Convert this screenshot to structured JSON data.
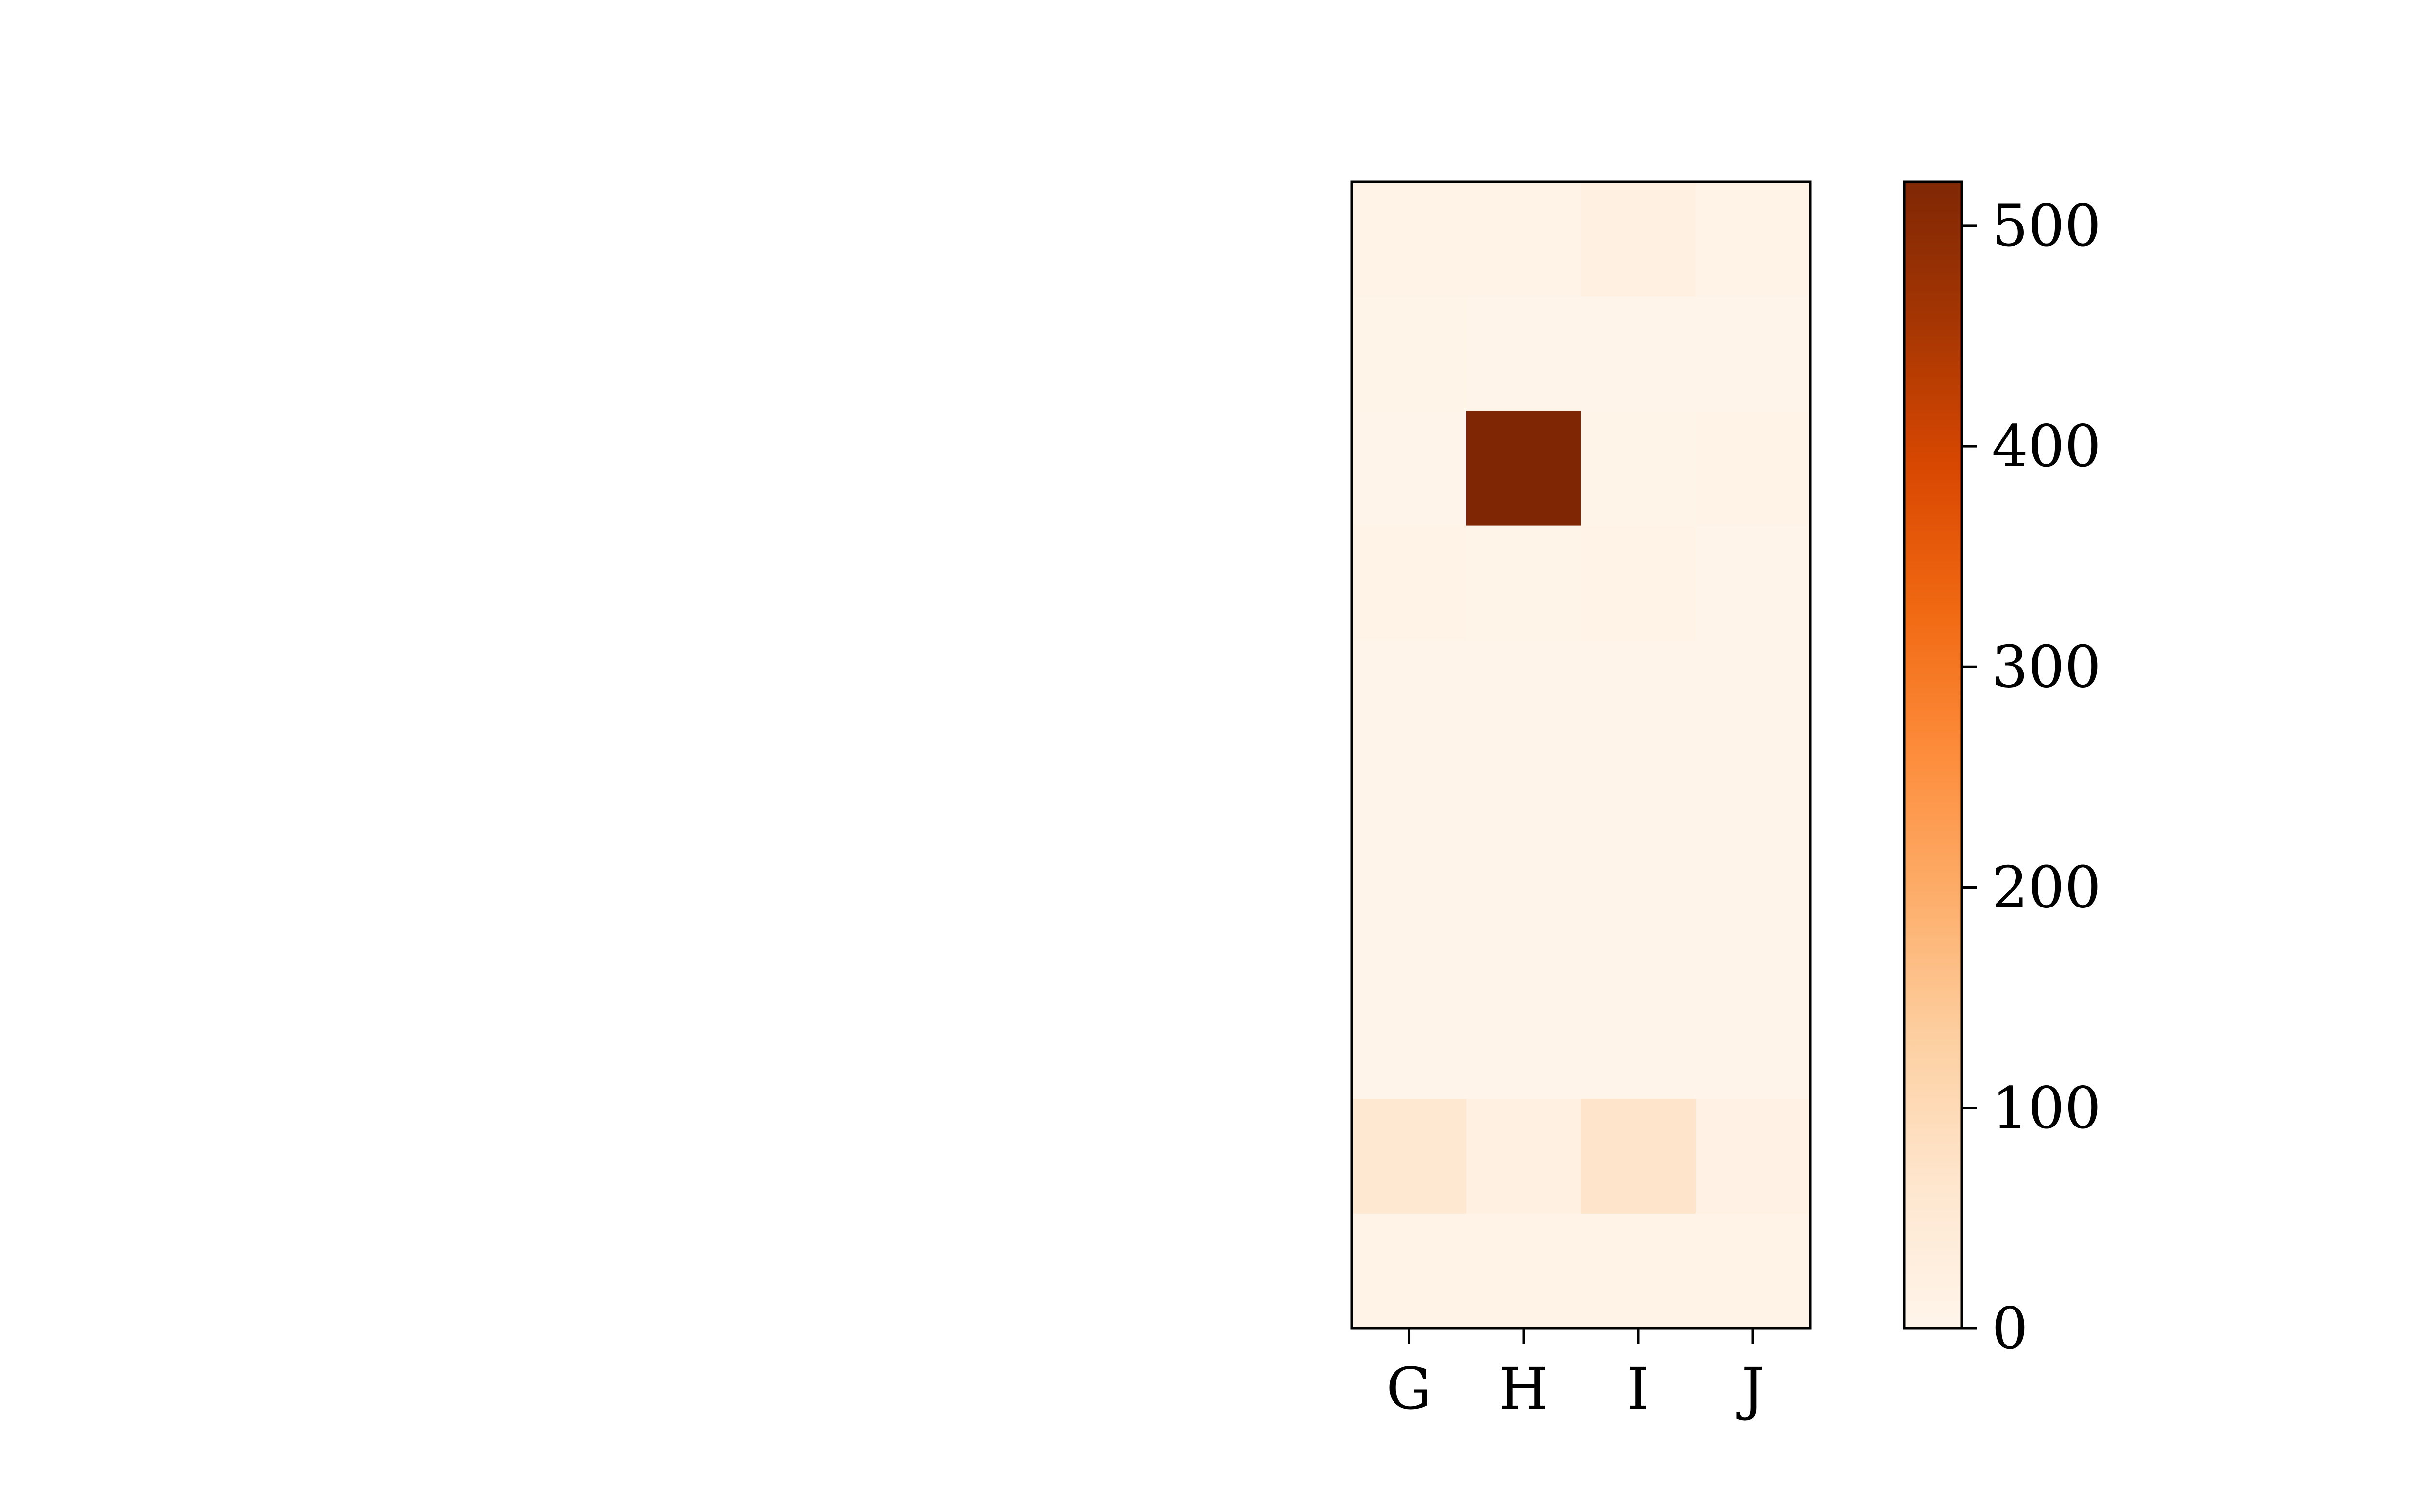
{
  "chart_data": {
    "type": "heatmap",
    "title": "",
    "xlabel": "",
    "ylabel": "",
    "x_categories": [
      "G",
      "H",
      "I",
      "J"
    ],
    "y_tick_labels": [],
    "matrix": [
      [
        8,
        10,
        20,
        12
      ],
      [
        6,
        5,
        5,
        5
      ],
      [
        5,
        520,
        6,
        8
      ],
      [
        10,
        6,
        12,
        5
      ],
      [
        4,
        4,
        4,
        4
      ],
      [
        4,
        4,
        4,
        4
      ],
      [
        4,
        4,
        4,
        4
      ],
      [
        4,
        4,
        4,
        4
      ],
      [
        55,
        20,
        70,
        15
      ],
      [
        8,
        10,
        10,
        8
      ]
    ],
    "colorbar": {
      "colormap": "Oranges",
      "vmin": 0,
      "vmax": 520,
      "ticks": [
        0,
        100,
        200,
        300,
        400,
        500
      ],
      "tick_labels": [
        "0",
        "100",
        "200",
        "300",
        "400",
        "500"
      ]
    }
  }
}
